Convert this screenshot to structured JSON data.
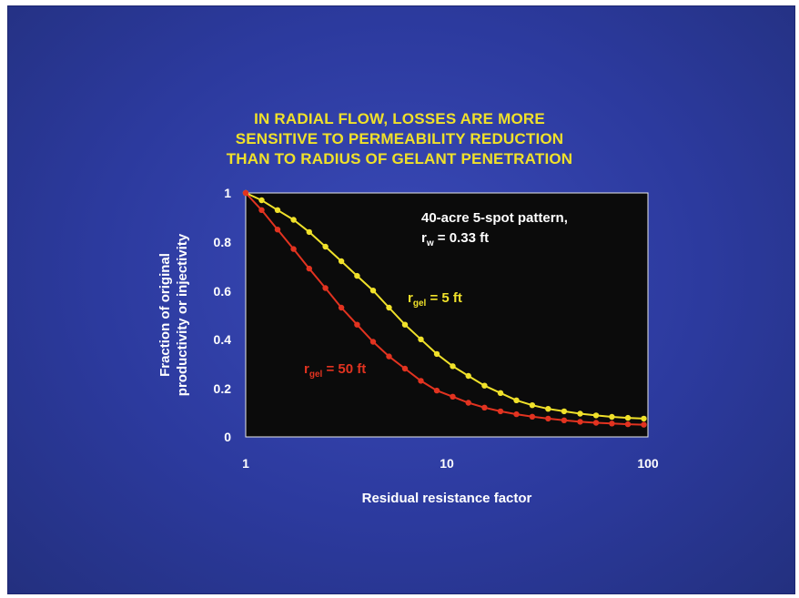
{
  "chart_data": {
    "type": "line",
    "title_lines": [
      "IN RADIAL FLOW, LOSSES ARE MORE",
      "SENSITIVE TO PERMEABILITY REDUCTION",
      "THAN TO RADIUS OF GELANT PENETRATION"
    ],
    "xlabel": "Residual resistance factor",
    "ylabel_lines": [
      "Fraction of original",
      "productivity or injectivity"
    ],
    "x_scale": "log",
    "xlim": [
      1,
      100
    ],
    "ylim": [
      0,
      1
    ],
    "x_ticks": [
      "1",
      "10",
      "100"
    ],
    "y_ticks": [
      "0",
      "0.2",
      "0.4",
      "0.6",
      "0.8",
      "1"
    ],
    "annotation": {
      "line1": "40-acre 5-spot pattern,",
      "r_symbol": "r",
      "r_sub": "w",
      "line2_rest": " = 0.33 ft"
    },
    "series": [
      {
        "label_r": "r",
        "label_sub": "gel",
        "label_rest": " = 5 ft",
        "color": "#f0e12a",
        "x": [
          1,
          1.2,
          1.44,
          1.73,
          2.07,
          2.49,
          2.99,
          3.58,
          4.3,
          5.16,
          6.19,
          7.43,
          8.92,
          10.7,
          12.8,
          15.4,
          18.5,
          22.2,
          26.6,
          31.9,
          38.3,
          46,
          55.2,
          66.2,
          79.5,
          95.4
        ],
        "y": [
          1,
          0.97,
          0.93,
          0.89,
          0.84,
          0.78,
          0.72,
          0.66,
          0.6,
          0.53,
          0.46,
          0.4,
          0.34,
          0.29,
          0.25,
          0.21,
          0.18,
          0.15,
          0.13,
          0.115,
          0.105,
          0.095,
          0.088,
          0.082,
          0.078,
          0.075
        ]
      },
      {
        "label_r": "r",
        "label_sub": "gel",
        "label_rest": " = 50 ft",
        "color": "#e23320",
        "x": [
          1,
          1.2,
          1.44,
          1.73,
          2.07,
          2.49,
          2.99,
          3.58,
          4.3,
          5.16,
          6.19,
          7.43,
          8.92,
          10.7,
          12.8,
          15.4,
          18.5,
          22.2,
          26.6,
          31.9,
          38.3,
          46,
          55.2,
          66.2,
          79.5,
          95.4
        ],
        "y": [
          1,
          0.93,
          0.85,
          0.77,
          0.69,
          0.61,
          0.53,
          0.46,
          0.39,
          0.33,
          0.28,
          0.23,
          0.19,
          0.165,
          0.14,
          0.12,
          0.105,
          0.093,
          0.083,
          0.075,
          0.068,
          0.062,
          0.058,
          0.055,
          0.052,
          0.05
        ]
      }
    ]
  }
}
